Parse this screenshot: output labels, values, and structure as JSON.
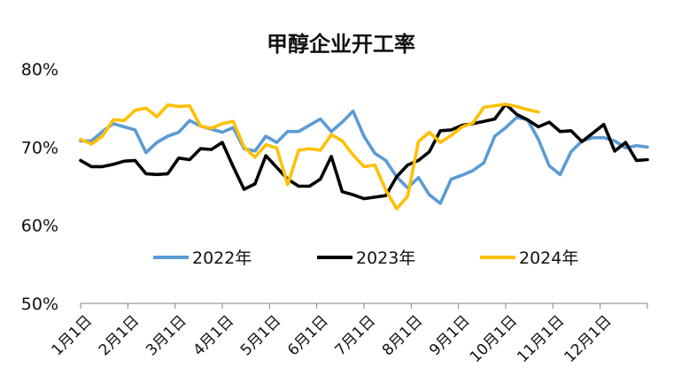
{
  "chart_data": {
    "type": "line",
    "title": "甲醇企业开工率",
    "xlabel": "",
    "ylabel": "",
    "ylim": [
      50,
      80
    ],
    "yticks": [
      "50%",
      "60%",
      "70%",
      "80%"
    ],
    "x_tick_labels": [
      "1月1日",
      "2月1日",
      "3月1日",
      "4月1日",
      "5月1日",
      "6月1日",
      "7月1日",
      "8月1日",
      "9月1日",
      "10月1日",
      "11月1日",
      "12月1日"
    ],
    "x_domain_weeks": [
      0,
      52
    ],
    "grid": false,
    "legend_position": "bottom-center",
    "series": [
      {
        "name": "2022年",
        "color": "#5B9BD5",
        "x": [
          0,
          1,
          2,
          3,
          4,
          5,
          6,
          7,
          8,
          9,
          10,
          11,
          12,
          13,
          14,
          15,
          16,
          17,
          18,
          19,
          20,
          21,
          22,
          23,
          24,
          25,
          26,
          27,
          28,
          29,
          30,
          31,
          32,
          33,
          34,
          35,
          36,
          37,
          38,
          39,
          40,
          41,
          42,
          43,
          44,
          45,
          46,
          47,
          48,
          49,
          50,
          51,
          52
        ],
        "values": [
          70.8,
          70.8,
          72.0,
          73.0,
          72.6,
          72.2,
          69.3,
          70.6,
          71.4,
          71.9,
          73.4,
          72.7,
          72.3,
          71.9,
          72.5,
          69.8,
          69.5,
          71.4,
          70.6,
          72.0,
          72.0,
          72.8,
          73.6,
          72.0,
          73.2,
          74.6,
          71.4,
          69.2,
          68.3,
          66.2,
          64.8,
          66.1,
          63.9,
          62.8,
          65.9,
          66.4,
          67.0,
          68.0,
          71.4,
          72.5,
          73.8,
          73.5,
          71.0,
          67.6,
          66.5,
          69.4,
          70.8,
          71.2,
          71.2,
          70.8,
          69.9,
          70.2,
          70.0
        ]
      },
      {
        "name": "2023年",
        "color": "#000000",
        "x": [
          0,
          1,
          2,
          3,
          4,
          5,
          6,
          7,
          8,
          9,
          10,
          11,
          12,
          13,
          14,
          15,
          16,
          17,
          18,
          19,
          20,
          21,
          22,
          23,
          24,
          25,
          26,
          27,
          28,
          29,
          30,
          31,
          32,
          33,
          34,
          35,
          36,
          37,
          38,
          39,
          40,
          41,
          42,
          43,
          44,
          45,
          46,
          47,
          48,
          49,
          50,
          51,
          52
        ],
        "values": [
          68.3,
          67.5,
          67.5,
          67.8,
          68.2,
          68.3,
          66.6,
          66.5,
          66.6,
          68.6,
          68.4,
          69.8,
          69.7,
          70.6,
          67.5,
          64.6,
          65.3,
          68.9,
          67.4,
          65.9,
          65.0,
          65.0,
          65.9,
          68.8,
          64.3,
          63.9,
          63.4,
          63.6,
          63.8,
          66.2,
          67.7,
          68.3,
          69.4,
          72.1,
          72.2,
          72.8,
          73.0,
          73.3,
          73.6,
          75.5,
          74.2,
          73.5,
          72.6,
          73.2,
          72.0,
          72.1,
          70.7,
          71.8,
          72.9,
          69.5,
          70.6,
          68.3,
          68.4
        ]
      },
      {
        "name": "2024年",
        "color": "#FFC000",
        "x": [
          0,
          1,
          2,
          3,
          4,
          5,
          6,
          7,
          8,
          9,
          10,
          11,
          12,
          13,
          14,
          15,
          16,
          17,
          18,
          19,
          20,
          21,
          22,
          23,
          24,
          25,
          26,
          27,
          28,
          29,
          30,
          31,
          32,
          33,
          34,
          35,
          36,
          37,
          38,
          39,
          40,
          41,
          42
        ],
        "values": [
          71.0,
          70.4,
          71.4,
          73.5,
          73.4,
          74.7,
          75.0,
          73.9,
          75.4,
          75.2,
          75.3,
          72.7,
          72.4,
          73.0,
          73.3,
          70.0,
          68.7,
          70.3,
          69.9,
          65.2,
          69.6,
          69.8,
          69.6,
          71.6,
          70.8,
          69.0,
          67.5,
          67.7,
          64.5,
          62.1,
          63.7,
          70.7,
          71.9,
          70.6,
          71.5,
          72.6,
          73.1,
          75.1,
          75.3,
          75.5,
          75.2,
          74.8,
          74.5
        ]
      }
    ]
  }
}
